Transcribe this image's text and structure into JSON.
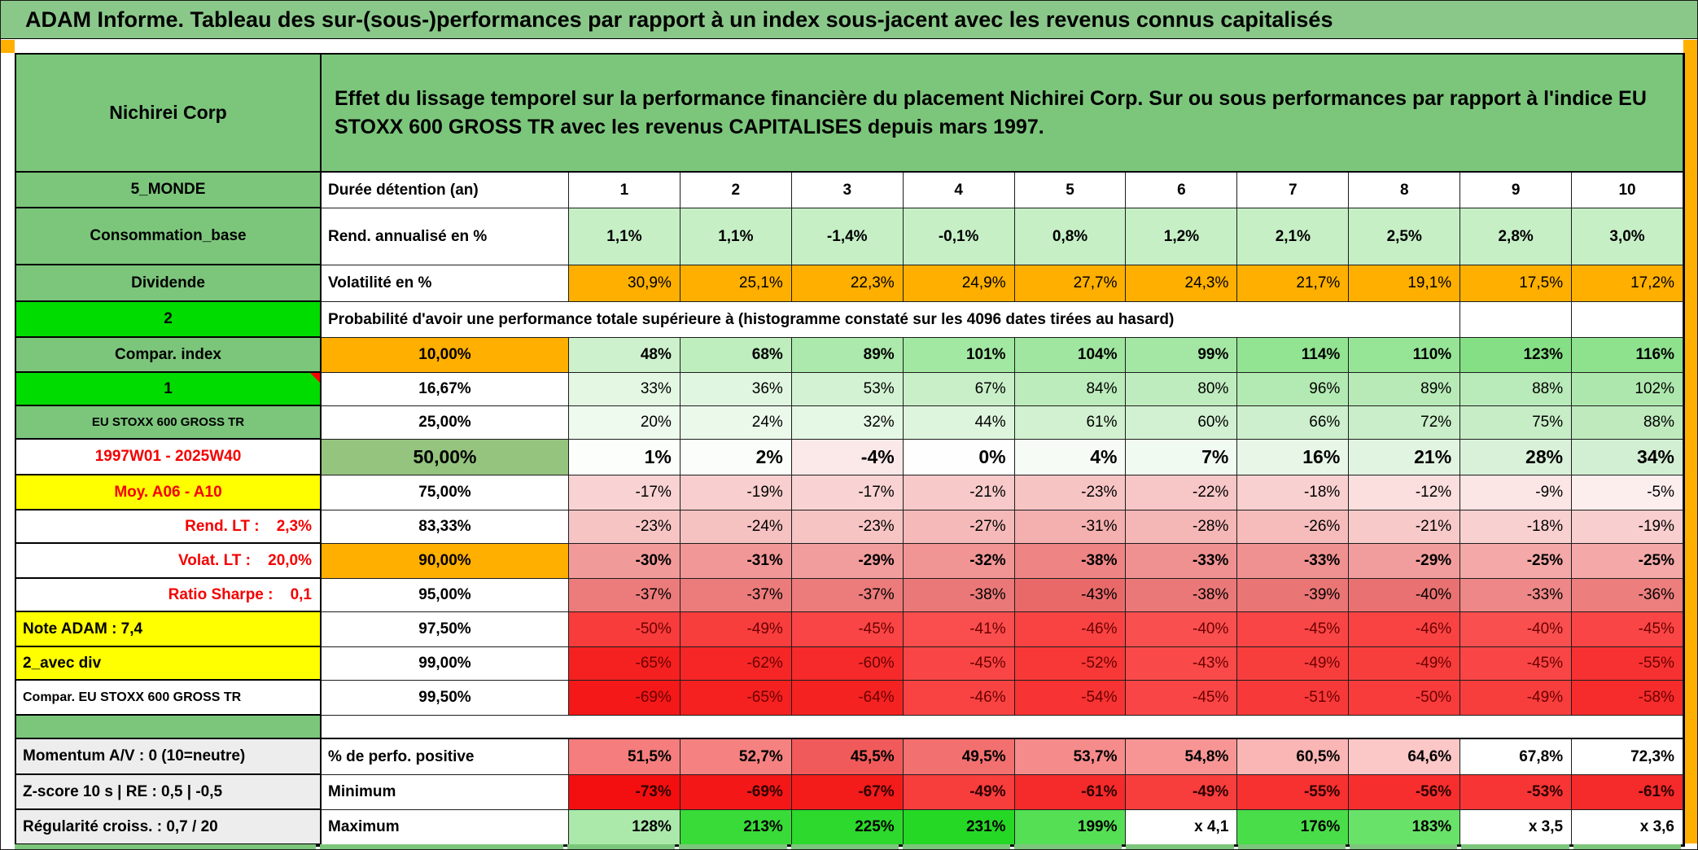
{
  "title": "ADAM Informe. Tableau des sur-(sous-)performances par rapport à un index sous-jacent avec les revenus connus capitalisés",
  "header": {
    "asset": "Nichirei Corp",
    "description": "Effet du lissage temporel sur la performance financière du placement Nichirei Corp. Sur ou sous performances par rapport à l'indice EU STOXX 600 GROSS TR avec les revenus CAPITALISES depuis mars 1997."
  },
  "colors": {
    "table_green": "#7CC67C",
    "bright_green": "#00DC00",
    "accent_orange": "#FFAF00",
    "yellow": "#FFFF00",
    "sage": "#94C47E",
    "red_text": "#F40000"
  },
  "table": {
    "columns": [
      "1",
      "2",
      "3",
      "4",
      "5",
      "6",
      "7",
      "8",
      "9",
      "10"
    ],
    "rows": [
      {
        "key": "duration",
        "left": "5_MONDE",
        "leftStyle": "green",
        "mid": "Durée détention (an)",
        "midStyle": "left",
        "cellStyle": "center-bold",
        "cells": [
          "1",
          "2",
          "3",
          "4",
          "5",
          "6",
          "7",
          "8",
          "9",
          "10"
        ],
        "bg": null
      },
      {
        "key": "rend",
        "left": "Consommation_base",
        "leftStyle": "green",
        "mid": "Rend. annualisé en %",
        "midStyle": "left",
        "cellStyle": "center-bold",
        "cells": [
          "1,1%",
          "1,1%",
          "-1,4%",
          "-0,1%",
          "0,8%",
          "1,2%",
          "2,1%",
          "2,5%",
          "2,8%",
          "3,0%"
        ],
        "bg": [
          "#C6EFC6",
          "#C6EFC6",
          "#C6EFC6",
          "#C6EFC6",
          "#C6EFC6",
          "#C6EFC6",
          "#C6EFC6",
          "#C6EFC6",
          "#C6EFC6",
          "#C6EFC6"
        ]
      },
      {
        "key": "volat",
        "left": "Dividende",
        "leftStyle": "green",
        "mid": "Volatilité en %",
        "midStyle": "left",
        "cellStyle": "right",
        "cells": [
          "30,9%",
          "25,1%",
          "22,3%",
          "24,9%",
          "27,7%",
          "24,3%",
          "21,7%",
          "19,1%",
          "17,5%",
          "17,2%"
        ],
        "bg": [
          "#FFAF00",
          "#FFAF00",
          "#FFAF00",
          "#FFAF00",
          "#FFAF00",
          "#FFAF00",
          "#FFAF00",
          "#FFAF00",
          "#FFAF00",
          "#FFAF00"
        ]
      },
      {
        "key": "proba",
        "left": "2",
        "leftStyle": "bright",
        "merged": {
          "text": "Probabilité d'avoir une performance totale supérieure à (histogramme constaté sur les 4096 dates tirées au hasard)",
          "span": 9
        },
        "tail": 2
      },
      {
        "key": "p10",
        "left": "Compar. index",
        "leftStyle": "green",
        "mid": "10,00%",
        "midStyle": "pct-orange",
        "cellStyle": "right-bold",
        "cells": [
          "48%",
          "68%",
          "89%",
          "101%",
          "104%",
          "99%",
          "114%",
          "110%",
          "123%",
          "116%"
        ],
        "bg": [
          "#CDF1CD",
          "#BEEDBE",
          "#ACE9AC",
          "#A2E7A2",
          "#A0E6A0",
          "#A4E7A4",
          "#92E392",
          "#96E496",
          "#85E085",
          "#8EE28E"
        ]
      },
      {
        "key": "p16",
        "left": "1",
        "leftStyle": "bright-note",
        "mid": "16,67%",
        "midStyle": "pct",
        "cellStyle": "right",
        "cells": [
          "33%",
          "36%",
          "53%",
          "67%",
          "84%",
          "80%",
          "96%",
          "89%",
          "88%",
          "102%"
        ],
        "bg": [
          "#E3F7E3",
          "#E0F6E0",
          "#D3F2D3",
          "#C9EFC9",
          "#BCEBBC",
          "#BFECBF",
          "#B3E9B3",
          "#B8EAB8",
          "#B9EAB9",
          "#AEE7AE"
        ]
      },
      {
        "key": "p25",
        "left": "EU STOXX 600 GROSS TR",
        "leftStyle": "green-sm",
        "mid": "25,00%",
        "midStyle": "pct",
        "cellStyle": "right",
        "cells": [
          "20%",
          "24%",
          "32%",
          "44%",
          "61%",
          "60%",
          "66%",
          "72%",
          "75%",
          "88%"
        ],
        "bg": [
          "#EEFAEE",
          "#EBF9EB",
          "#E5F7E5",
          "#DDF4DD",
          "#D1F1D1",
          "#D2F1D2",
          "#CDEFCD",
          "#C9EEC9",
          "#C7EDC7",
          "#BEEABE"
        ]
      },
      {
        "key": "p50",
        "left": "1997W01 - 2025W40",
        "leftStyle": "red-center",
        "mid": "50,00%",
        "midStyle": "pct-big",
        "cellStyle": "big-right-bold",
        "cells": [
          "1%",
          "2%",
          "-4%",
          "0%",
          "4%",
          "7%",
          "16%",
          "21%",
          "28%",
          "34%"
        ],
        "bg": [
          "#FCFEFC",
          "#FAFDFA",
          "#FBE9E9",
          "#FEFEFE",
          "#F6FBF6",
          "#F1FAF1",
          "#E7F6E7",
          "#E1F4E1",
          "#D9F1D9",
          "#D3EFD3"
        ]
      },
      {
        "key": "p75",
        "left": "Moy. A06 - A10",
        "leftStyle": "yellow-red",
        "mid": "75,00%",
        "midStyle": "pct",
        "cellStyle": "right",
        "cells": [
          "-17%",
          "-19%",
          "-17%",
          "-21%",
          "-23%",
          "-22%",
          "-18%",
          "-12%",
          "-9%",
          "-5%"
        ],
        "bg": [
          "#F9D3D3",
          "#F8CECE",
          "#F9D3D3",
          "#F8C9C9",
          "#F7C4C4",
          "#F7C6C6",
          "#F9D0D0",
          "#FBDEDE",
          "#FCE5E5",
          "#FDEEEE"
        ]
      },
      {
        "key": "p83",
        "left": "Rend. LT :    2,3%",
        "leftStyle": "red-right",
        "mid": "83,33%",
        "midStyle": "pct",
        "cellStyle": "right",
        "cells": [
          "-23%",
          "-24%",
          "-23%",
          "-27%",
          "-31%",
          "-28%",
          "-26%",
          "-21%",
          "-18%",
          "-19%"
        ],
        "bg": [
          "#F7C4C4",
          "#F6C1C1",
          "#F7C4C4",
          "#F5B9B9",
          "#F4AFAF",
          "#F5B6B6",
          "#F6BCBC",
          "#F8C9C9",
          "#F9D0D0",
          "#F8CECE"
        ]
      },
      {
        "key": "p90",
        "left": "Volat. LT :    20,0%",
        "leftStyle": "red-right",
        "mid": "90,00%",
        "midStyle": "pct-orange",
        "cellStyle": "right-bold",
        "cells": [
          "-30%",
          "-31%",
          "-29%",
          "-32%",
          "-38%",
          "-33%",
          "-33%",
          "-29%",
          "-25%",
          "-25%"
        ],
        "bg": [
          "#F19A9A",
          "#F19797",
          "#F29D9D",
          "#F09494",
          "#EE8484",
          "#F09191",
          "#F09191",
          "#F29D9D",
          "#F4A8A8",
          "#F4A8A8"
        ]
      },
      {
        "key": "p95",
        "left": "Ratio Sharpe :    0,1",
        "leftStyle": "red-right",
        "mid": "95,00%",
        "midStyle": "pct",
        "cellStyle": "right",
        "cells": [
          "-37%",
          "-37%",
          "-37%",
          "-38%",
          "-43%",
          "-38%",
          "-39%",
          "-40%",
          "-33%",
          "-36%"
        ],
        "bg": [
          "#EC7B7B",
          "#EC7B7B",
          "#EC7B7B",
          "#EB7878",
          "#E96969",
          "#EB7878",
          "#EA7575",
          "#EA7171",
          "#EE8787",
          "#ED7E7E"
        ]
      },
      {
        "key": "p975",
        "left": "Note ADAM : 7,4",
        "leftStyle": "yellow-left",
        "mid": "97,50%",
        "midStyle": "pct",
        "cellStyle": "right-deep",
        "cells": [
          "-50%",
          "-49%",
          "-45%",
          "-41%",
          "-46%",
          "-40%",
          "-45%",
          "-46%",
          "-40%",
          "-45%"
        ],
        "bg": [
          "#F83B3B",
          "#F83D3D",
          "#F94545",
          "#FA4D4D",
          "#F94343",
          "#FA4F4F",
          "#F94545",
          "#F94343",
          "#FA4F4F",
          "#F94545"
        ]
      },
      {
        "key": "p99",
        "left": "2_avec div",
        "leftStyle": "yellow-left",
        "mid": "99,00%",
        "midStyle": "pct",
        "cellStyle": "right-deep",
        "cells": [
          "-65%",
          "-62%",
          "-60%",
          "-45%",
          "-52%",
          "-43%",
          "-49%",
          "-49%",
          "-45%",
          "-55%"
        ],
        "bg": [
          "#F52020",
          "#F62626",
          "#F62A2A",
          "#F94545",
          "#F83737",
          "#FA4949",
          "#F83D3D",
          "#F83D3D",
          "#F94545",
          "#F73131"
        ]
      },
      {
        "key": "p995",
        "left": "Compar. EU STOXX 600 GROSS TR",
        "leftStyle": "white-sm-left",
        "mid": "99,50%",
        "midStyle": "pct",
        "cellStyle": "right-deep",
        "cells": [
          "-69%",
          "-65%",
          "-64%",
          "-46%",
          "-54%",
          "-45%",
          "-51%",
          "-50%",
          "-49%",
          "-58%"
        ],
        "bg": [
          "#F41818",
          "#F52020",
          "#F52222",
          "#F94343",
          "#F73333",
          "#F94545",
          "#F83939",
          "#F83B3B",
          "#F83D3D",
          "#F62C2C"
        ]
      },
      {
        "key": "spacer",
        "left": "",
        "leftStyle": "spacer-green"
      },
      {
        "key": "perfo",
        "left": "Momentum A/V : 0 (10=neutre)",
        "leftStyle": "gray-left",
        "mid": "% de perfo. positive",
        "midStyle": "left",
        "cellStyle": "right-bold",
        "cells": [
          "51,5%",
          "52,7%",
          "45,5%",
          "49,5%",
          "53,7%",
          "54,8%",
          "60,5%",
          "64,6%",
          "67,8%",
          "72,3%"
        ],
        "bg": [
          "#F57D7D",
          "#F58181",
          "#F15A5A",
          "#F37070",
          "#F68B8B",
          "#F79595",
          "#FAB5B5",
          "#FCC7C7",
          "#FFFFFF",
          "#FFFFFF"
        ]
      },
      {
        "key": "min",
        "left": "Z-score 10 s | RE : 0,5 | -0,5",
        "leftStyle": "gray-left",
        "mid": "Minimum",
        "midStyle": "left",
        "cellStyle": "right-bold-deep",
        "cells": [
          "-73%",
          "-69%",
          "-67%",
          "-49%",
          "-61%",
          "-49%",
          "-55%",
          "-56%",
          "-53%",
          "-61%"
        ],
        "bg": [
          "#F30F0F",
          "#F41717",
          "#F41B1B",
          "#F83D3D",
          "#F52A2A",
          "#F83D3D",
          "#F73030",
          "#F72E2E",
          "#F83535",
          "#F52A2A"
        ]
      },
      {
        "key": "max",
        "left": "Régularité croiss. : 0,7 / 20",
        "leftStyle": "gray-left",
        "mid": "Maximum",
        "midStyle": "left",
        "cellStyle": "right-bold",
        "cells": [
          "128%",
          "213%",
          "225%",
          "231%",
          "199%",
          "x 4,1",
          "176%",
          "183%",
          "x 3,5",
          "x 3,6"
        ],
        "bg": [
          "#ABE9AB",
          "#38DB38",
          "#2CD92C",
          "#26D826",
          "#55DF55",
          "#FFFFFF",
          "#49DD49",
          "#68E268",
          "#FFFFFF",
          "#FFFFFF"
        ]
      }
    ]
  }
}
